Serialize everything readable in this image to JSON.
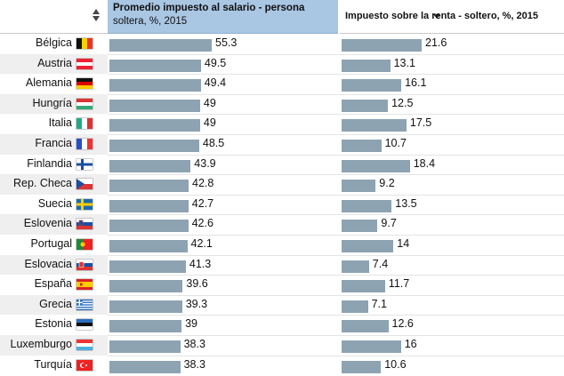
{
  "header": {
    "col1_title": "Promedio impuesto al salario - persona",
    "col1_subtitle": "soltera, %, 2015",
    "col2_title": "Impuesto sobre la renta - soltero, %, 2015"
  },
  "colors": {
    "bar": "#8ea3b2",
    "header_selected": "#a9c6e3",
    "row_alt": "#efefef"
  },
  "rows": [
    {
      "country": "Bélgica",
      "flag": "flag-be-icon",
      "v1": "55.3",
      "v2": "21.6"
    },
    {
      "country": "Austria",
      "flag": "flag-at-icon",
      "v1": "49.5",
      "v2": "13.1"
    },
    {
      "country": "Alemania",
      "flag": "flag-de-icon",
      "v1": "49.4",
      "v2": "16.1"
    },
    {
      "country": "Hungría",
      "flag": "flag-hu-icon",
      "v1": "49",
      "v2": "12.5"
    },
    {
      "country": "Italia",
      "flag": "flag-it-icon",
      "v1": "49",
      "v2": "17.5"
    },
    {
      "country": "Francia",
      "flag": "flag-fr-icon",
      "v1": "48.5",
      "v2": "10.7"
    },
    {
      "country": "Finlandia",
      "flag": "flag-fi-icon",
      "v1": "43.9",
      "v2": "18.4"
    },
    {
      "country": "Rep. Checa",
      "flag": "flag-cz-icon",
      "v1": "42.8",
      "v2": "9.2"
    },
    {
      "country": "Suecia",
      "flag": "flag-se-icon",
      "v1": "42.7",
      "v2": "13.5"
    },
    {
      "country": "Eslovenia",
      "flag": "flag-si-icon",
      "v1": "42.6",
      "v2": "9.7"
    },
    {
      "country": "Portugal",
      "flag": "flag-pt-icon",
      "v1": "42.1",
      "v2": "14"
    },
    {
      "country": "Eslovacia",
      "flag": "flag-sk-icon",
      "v1": "41.3",
      "v2": "7.4"
    },
    {
      "country": "España",
      "flag": "flag-es-icon",
      "v1": "39.6",
      "v2": "11.7"
    },
    {
      "country": "Grecia",
      "flag": "flag-gr-icon",
      "v1": "39.3",
      "v2": "7.1"
    },
    {
      "country": "Estonia",
      "flag": "flag-ee-icon",
      "v1": "39",
      "v2": "12.6"
    },
    {
      "country": "Luxemburgo",
      "flag": "flag-lu-icon",
      "v1": "38.3",
      "v2": "16"
    },
    {
      "country": "Turquía",
      "flag": "flag-tr-icon",
      "v1": "38.3",
      "v2": "10.6"
    }
  ]
}
